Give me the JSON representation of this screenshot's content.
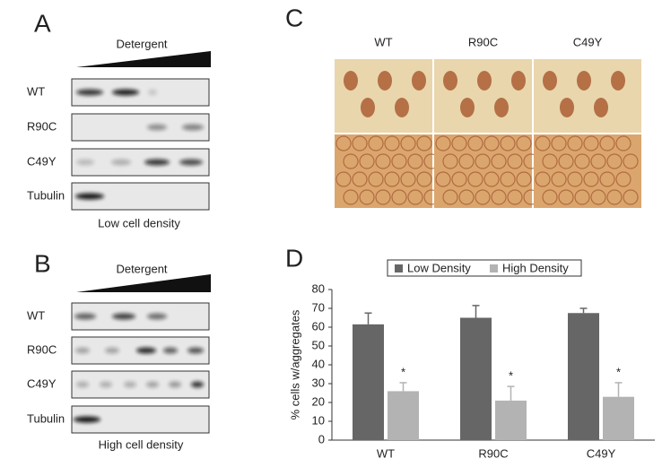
{
  "panel_a": {
    "label": "A",
    "header": "Detergent",
    "rows": [
      "WT",
      "R90C",
      "C49Y",
      "Tubulin"
    ],
    "caption": "Low cell density"
  },
  "panel_b": {
    "label": "B",
    "header": "Detergent",
    "rows": [
      "WT",
      "R90C",
      "C49Y",
      "Tubulin"
    ],
    "caption": "High cell density"
  },
  "panel_c": {
    "label": "C",
    "columns": [
      "WT",
      "R90C",
      "C49Y"
    ]
  },
  "chart_data": {
    "type": "bar",
    "label": "D",
    "ylabel": "% cells w/aggregates",
    "categories": [
      "WT",
      "R90C",
      "C49Y"
    ],
    "series": [
      {
        "name": "Low Density",
        "color": "#666666",
        "values": [
          61.5,
          65,
          67.5
        ],
        "errors": [
          6,
          6.5,
          2.5
        ]
      },
      {
        "name": "High Density",
        "color": "#b3b3b3",
        "values": [
          26,
          21,
          23
        ],
        "errors": [
          4.5,
          7.5,
          7.5
        ]
      }
    ],
    "annotations": [
      "*",
      "*",
      "*"
    ],
    "ylim": [
      0,
      80
    ],
    "yticks": [
      0,
      10,
      20,
      30,
      40,
      50,
      60,
      70,
      80
    ]
  }
}
